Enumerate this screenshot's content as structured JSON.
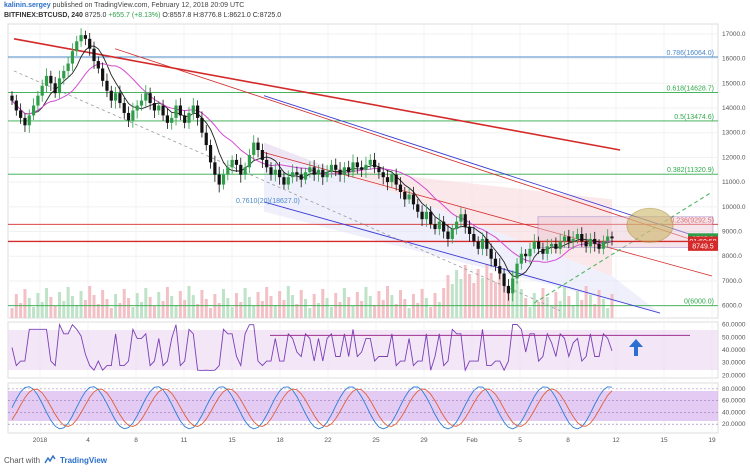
{
  "header": {
    "author": "kalinin.sergey",
    "published": "published on TradingView.com, February 12, 2018 20:09 UTC"
  },
  "ohlc": {
    "symbol": "BITFINEX:BTCUSD, 240",
    "close": "8725.0",
    "change": "+655.7 (+8.13%)",
    "open": "O:8557.8",
    "high": "H:8776.8",
    "low": "L:8621.0",
    "close_label": "C:8725.0"
  },
  "footer": {
    "prefix": "Chart with",
    "brand": "TradingView"
  },
  "colors": {
    "up": "#2e9e4a",
    "down": "#111111",
    "trendline": "#d42a2a",
    "channel": "#3c3cd6",
    "fib_green": "#2fa84a",
    "fib_blue": "#4a88c8",
    "box_fill": "#e9c4cf",
    "rsi_bg": "#ecdcf3",
    "stoch_bg": "#d9b9f0",
    "ellipse": "#c8b05a",
    "arrow": "#2c6fd1"
  },
  "chart_data": {
    "type": "candlestick",
    "title": "BITFINEX:BTCUSD, 240",
    "x_tick_labels": [
      "2018",
      "4",
      "8",
      "11",
      "15",
      "18",
      "22",
      "25",
      "29",
      "Feb",
      "5",
      "8",
      "12",
      "15",
      "19"
    ],
    "y_tick_labels": [
      "17000.0",
      "16000.0",
      "15000.0",
      "14000.0",
      "13000.0",
      "12000.0",
      "11000.0",
      "10000.0",
      "9000.0",
      "8000.0",
      "7000.0",
      "6000.0"
    ],
    "ylim": [
      5500,
      17400
    ],
    "fib_levels": [
      {
        "label": "0.786(16064.0)",
        "value": 16064,
        "color": "#4a88c8"
      },
      {
        "label": "0.618(14628.7)",
        "value": 14628.7,
        "color": "#2fa84a"
      },
      {
        "label": "0.5(13474.6)",
        "value": 13474.6,
        "color": "#2fa84a"
      },
      {
        "label": "0.382(11320.9)",
        "value": 11320.9,
        "color": "#2fa84a"
      },
      {
        "label": "0.236(9292.5)",
        "value": 9292.5,
        "color": "#d42a2a"
      },
      {
        "label": "0(6000.0)",
        "value": 6000,
        "color": "#2fa84a"
      }
    ],
    "annotation_text": "0.7610(20)(18627.0)",
    "price_labels": [
      {
        "label": "8725.0",
        "value": 8725,
        "color": "#2e9e4a"
      },
      {
        "label": "01:50:58",
        "value": 8600,
        "color": "#d42a2a"
      },
      {
        "label": "8749.5",
        "value": 8420,
        "color": "#d42a2a"
      }
    ],
    "close_series": [
      14300,
      13900,
      13600,
      13300,
      13700,
      14100,
      14500,
      14900,
      15300,
      15000,
      14600,
      15200,
      15500,
      15800,
      16300,
      16700,
      16950,
      16800,
      16400,
      15900,
      15600,
      15100,
      14700,
      14300,
      14600,
      14200,
      13800,
      13500,
      13900,
      14100,
      14300,
      14600,
      14200,
      13900,
      14100,
      13700,
      13400,
      13600,
      14100,
      13700,
      13400,
      13800,
      14100,
      13600,
      13000,
      12500,
      11800,
      11300,
      10900,
      11300,
      11600,
      11900,
      11700,
      11300,
      11600,
      12100,
      12600,
      12300,
      11900,
      11600,
      11300,
      11500,
      11200,
      10900,
      11200,
      11400,
      11300,
      11100,
      11400,
      11600,
      11300,
      11500,
      11200,
      11400,
      11700,
      11500,
      11300,
      11600,
      11400,
      11800,
      11600,
      11500,
      11700,
      11900,
      11600,
      11400,
      11200,
      11000,
      11300,
      10900,
      10600,
      10300,
      10500,
      10100,
      9800,
      9500,
      9800,
      9300,
      9100,
      9400,
      9000,
      8700,
      9100,
      9400,
      9700,
      9200,
      8900,
      8600,
      8300,
      8700,
      8300,
      7900,
      7600,
      7300,
      6800,
      6500,
      7100,
      7700,
      8100,
      8000,
      8300,
      8600,
      8300,
      8100,
      8400,
      8500,
      8300,
      8600,
      8800,
      8600,
      8700,
      8900,
      8600,
      8400,
      8700,
      8500,
      8300,
      8600,
      8800,
      8725
    ],
    "rsi": {
      "ticks": [
        "60.0000",
        "50.0000",
        "40.0000",
        "30.0000",
        "20.0000"
      ],
      "ylim": [
        18,
        62
      ]
    },
    "stoch": {
      "ticks": [
        "80.0000",
        "60.0000",
        "40.0000",
        "20.0000"
      ],
      "ylim": [
        5,
        90
      ]
    }
  }
}
